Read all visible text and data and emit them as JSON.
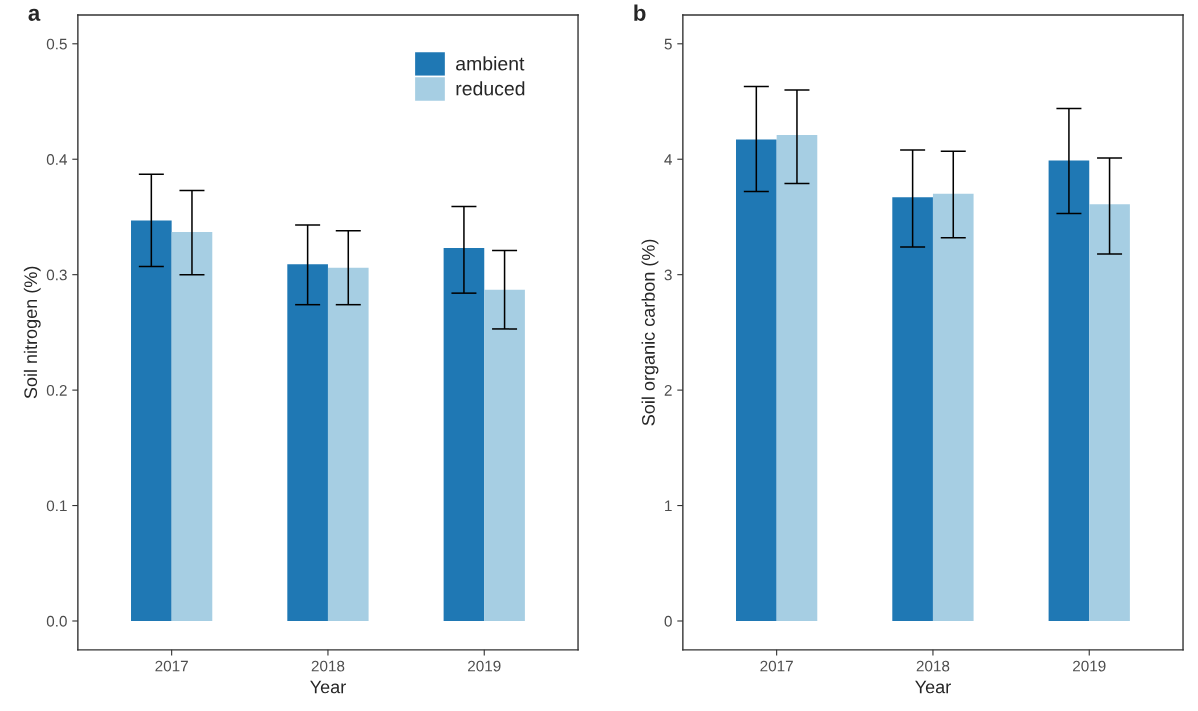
{
  "chart_data": [
    {
      "type": "bar",
      "title": "a",
      "xlabel": "Year",
      "ylabel": "Soil nitrogen (%)",
      "categories": [
        "2017",
        "2018",
        "2019"
      ],
      "ylim": [
        -0.025,
        0.525
      ],
      "yticks": [
        {
          "value": 0,
          "label": "0.0"
        },
        0.1,
        0.2,
        0.3,
        0.4,
        0.5
      ],
      "grid": false,
      "legend": "top right",
      "series": [
        {
          "name": "ambient",
          "color": "#1f78b4",
          "values": [
            0.347,
            0.309,
            0.323
          ],
          "errors": [
            [
              0.307,
              0.387
            ],
            [
              0.274,
              0.343
            ],
            [
              0.284,
              0.359
            ]
          ]
        },
        {
          "name": "reduced",
          "color": "#a6cee3",
          "values": [
            0.337,
            0.306,
            0.287
          ],
          "errors": [
            [
              0.3,
              0.373
            ],
            [
              0.274,
              0.338
            ],
            [
              0.253,
              0.321
            ]
          ]
        }
      ]
    },
    {
      "type": "bar",
      "title": "b",
      "xlabel": "Year",
      "ylabel": "Soil organic carbon (%)",
      "categories": [
        "2017",
        "2018",
        "2019"
      ],
      "ylim": [
        -0.25,
        5.25
      ],
      "yticks": [
        0,
        1,
        2,
        3,
        4,
        5
      ],
      "grid": false,
      "legend": false,
      "series": [
        {
          "color": "#1f78b4",
          "values": [
            4.17,
            3.67,
            3.99
          ],
          "errors": [
            [
              3.72,
              4.63
            ],
            [
              3.24,
              4.08
            ],
            [
              3.53,
              4.44
            ]
          ]
        },
        {
          "color": "#a6cee3",
          "values": [
            4.21,
            3.7,
            3.61
          ],
          "errors": [
            [
              3.79,
              4.6
            ],
            [
              3.32,
              4.07
            ],
            [
              3.18,
              4.01
            ]
          ]
        }
      ]
    }
  ]
}
